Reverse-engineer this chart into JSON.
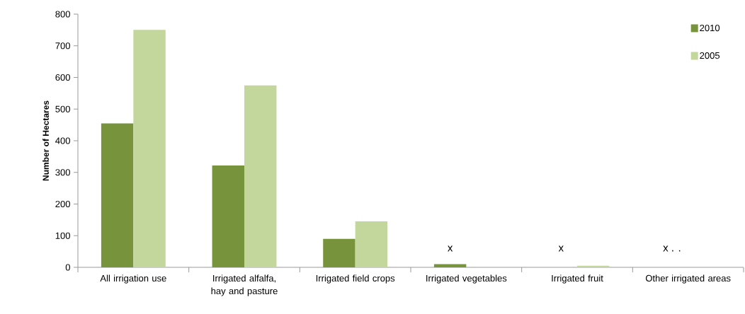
{
  "chart_data": {
    "type": "bar",
    "ylabel": "Number of Hectares",
    "categories": [
      "All irrigation use",
      "Irrigated alfalfa, hay and pasture",
      "Irrigated field crops",
      "Irrigated vegetables",
      "Irrigated fruit",
      "Other irrigated areas"
    ],
    "series": [
      {
        "name": "2010",
        "color": "#77933c",
        "values": [
          455,
          322,
          90,
          10,
          null,
          null
        ]
      },
      {
        "name": "2005",
        "color": "#c3d69b",
        "values": [
          750,
          575,
          145,
          null,
          5,
          null
        ]
      }
    ],
    "ylim": [
      0,
      800
    ],
    "yticks": [
      0,
      100,
      200,
      300,
      400,
      500,
      600,
      700,
      800
    ],
    "annotations": [
      "x",
      "x",
      "x . ."
    ],
    "legend": "top right",
    "grid": false
  }
}
